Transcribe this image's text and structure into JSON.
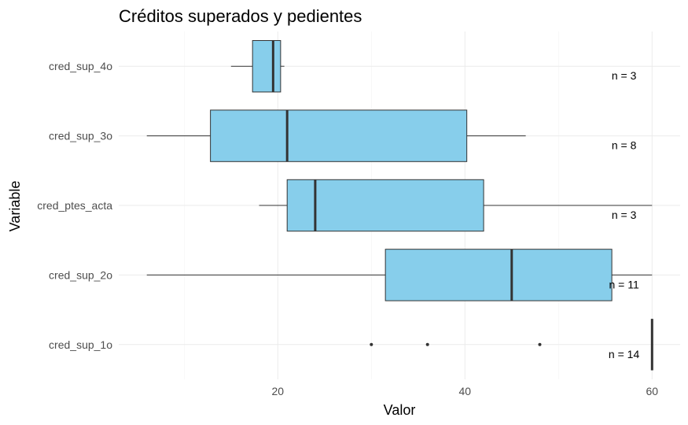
{
  "chart_data": {
    "type": "boxplot",
    "orientation": "horizontal",
    "title": "Créditos superados y pedientes",
    "xlabel": "Valor",
    "ylabel": "Variable",
    "xlim": [
      3,
      63
    ],
    "x_ticks": [
      20,
      40,
      60
    ],
    "grid": true,
    "box_color": "#87CEEB",
    "line_color": "#333333",
    "categories": [
      "cred_sup_4o",
      "cred_sup_3o",
      "cred_ptes_acta",
      "cred_sup_2o",
      "cred_sup_1o"
    ],
    "series": [
      {
        "category": "cred_sup_4o",
        "whisker_low": 15,
        "q1": 17.3,
        "median": 19.5,
        "q3": 20.3,
        "whisker_high": 20.7,
        "outliers": [],
        "n_label": "n = 3"
      },
      {
        "category": "cred_sup_3o",
        "whisker_low": 6,
        "q1": 12.8,
        "median": 21,
        "q3": 40.2,
        "whisker_high": 46.5,
        "outliers": [],
        "n_label": "n = 8"
      },
      {
        "category": "cred_ptes_acta",
        "whisker_low": 18,
        "q1": 21,
        "median": 24,
        "q3": 42,
        "whisker_high": 60,
        "outliers": [],
        "n_label": "n = 3"
      },
      {
        "category": "cred_sup_2o",
        "whisker_low": 6,
        "q1": 31.5,
        "median": 45,
        "q3": 55.7,
        "whisker_high": 60,
        "outliers": [],
        "n_label": "n = 11"
      },
      {
        "category": "cred_sup_1o",
        "whisker_low": 60,
        "q1": 60,
        "median": 60,
        "q3": 60,
        "whisker_high": 60,
        "outliers": [
          30,
          36,
          48
        ],
        "n_label": "n = 14"
      }
    ]
  }
}
